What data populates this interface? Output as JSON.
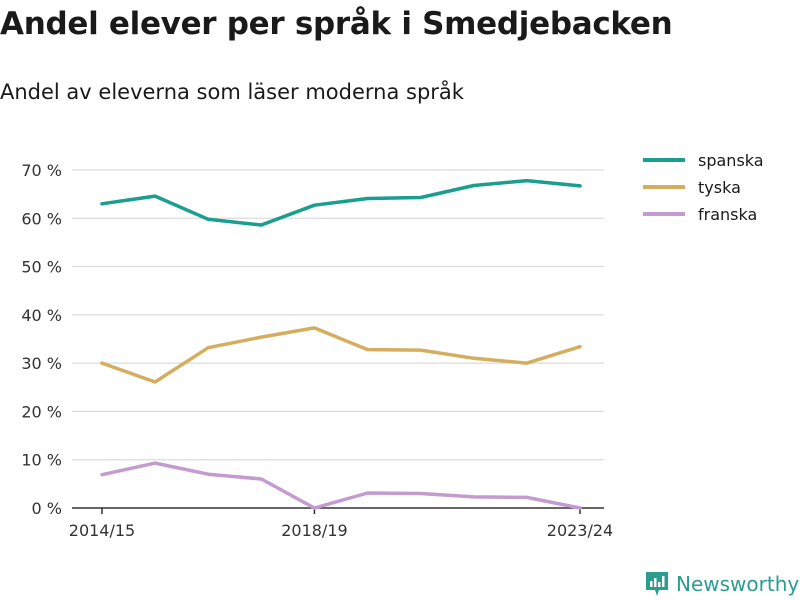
{
  "title": "Andel elever per språk i Smedjebacken",
  "subtitle": "Andel av eleverna som läser moderna språk",
  "brand": {
    "name": "Newsworthy",
    "icon": "newsworthy-logo-icon",
    "color": "#2a9d8f"
  },
  "chart_data": {
    "type": "line",
    "title": "Andel elever per språk i Smedjebacken",
    "subtitle": "Andel av eleverna som läser moderna språk",
    "x": [
      "2014/15",
      "2015/16",
      "2016/17",
      "2017/18",
      "2018/19",
      "2019/20",
      "2020/21",
      "2021/22",
      "2022/23",
      "2023/24"
    ],
    "x_tick_labels": [
      "2014/15",
      "2018/19",
      "2023/24"
    ],
    "ylim": [
      0,
      70
    ],
    "y_ticks": [
      0,
      10,
      20,
      30,
      40,
      50,
      60,
      70
    ],
    "y_tick_labels": [
      "0 %",
      "10 %",
      "20 %",
      "30 %",
      "40 %",
      "50 %",
      "60 %",
      "70 %"
    ],
    "grid": true,
    "legend_position": "top-right",
    "series": [
      {
        "name": "spanska",
        "color": "#1a9e8f",
        "values": [
          63.0,
          64.6,
          59.8,
          58.6,
          62.7,
          64.1,
          64.3,
          66.8,
          67.8,
          66.7
        ]
      },
      {
        "name": "tyska",
        "color": "#d4ae5e",
        "values": [
          30.0,
          26.1,
          33.2,
          35.4,
          37.3,
          32.8,
          32.7,
          31.0,
          30.0,
          33.4
        ]
      },
      {
        "name": "franska",
        "color": "#c39bcf",
        "values": [
          6.9,
          9.3,
          7.0,
          6.0,
          0.0,
          3.1,
          3.0,
          2.3,
          2.2,
          0.0
        ]
      }
    ]
  }
}
